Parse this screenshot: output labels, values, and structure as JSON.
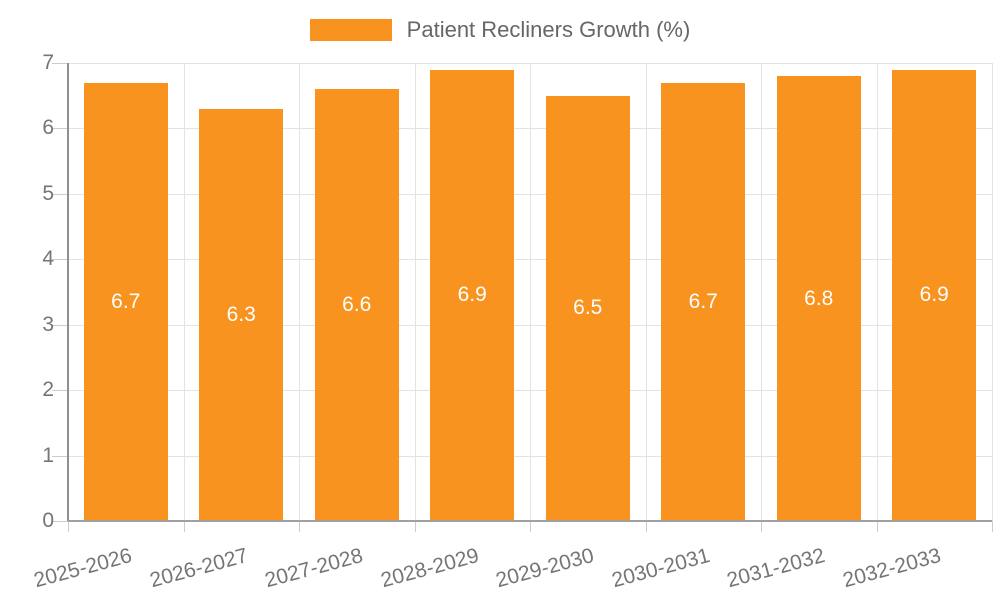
{
  "chart_data": {
    "type": "bar",
    "title": "Patient Recliners Growth (%)",
    "legend": [
      {
        "name": "Patient Recliners Growth (%)",
        "color": "#F7931E"
      }
    ],
    "legend_position": "top-center",
    "categories": [
      "2025-2026",
      "2026-2027",
      "2027-2028",
      "2028-2029",
      "2029-2030",
      "2030-2031",
      "2031-2032",
      "2032-2033"
    ],
    "series": [
      {
        "name": "Patient Recliners Growth (%)",
        "values": [
          6.7,
          6.3,
          6.6,
          6.9,
          6.5,
          6.7,
          6.8,
          6.9
        ]
      }
    ],
    "value_labels": [
      "6.7",
      "6.3",
      "6.6",
      "6.9",
      "6.5",
      "6.7",
      "6.8",
      "6.9"
    ],
    "xlabel": "",
    "ylabel": "",
    "ylim": [
      0,
      7
    ],
    "yticks": [
      0,
      1,
      2,
      3,
      4,
      5,
      6,
      7
    ],
    "grid": true,
    "x_label_rotation_deg": -15,
    "colors": {
      "bar": "#F7931E",
      "value_label": "#FFFFFF",
      "axis_text": "#757575",
      "legend_text": "#666666",
      "grid": "#E3E3E3",
      "axis_line_y": "#8F8F8F",
      "axis_line_x": "#A0A0A0",
      "tick": "#CCCCCC",
      "background": "#FFFFFF"
    }
  }
}
